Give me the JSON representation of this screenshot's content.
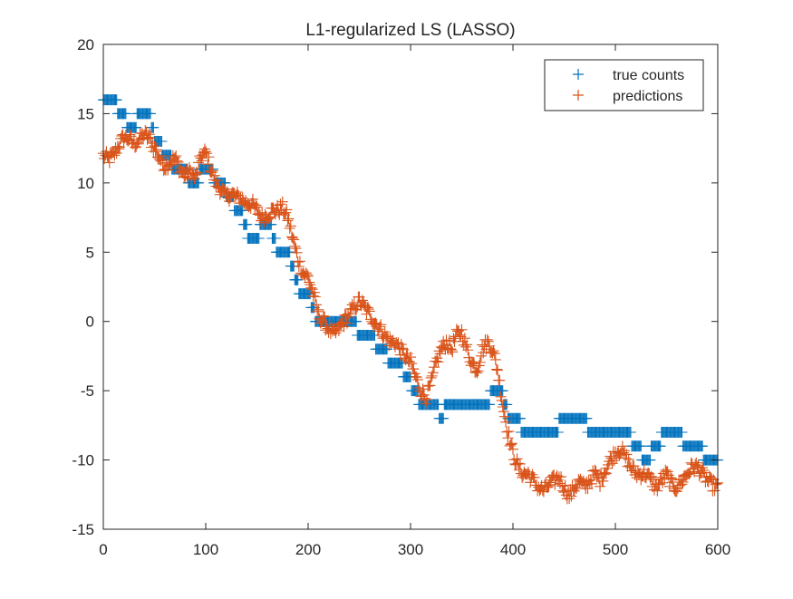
{
  "chart_data": {
    "type": "scatter",
    "title": "L1-regularized LS (LASSO)",
    "xlabel": "",
    "ylabel": "",
    "xlim": [
      0,
      600
    ],
    "ylim": [
      -15,
      20
    ],
    "xticks": [
      0,
      100,
      200,
      300,
      400,
      500,
      600
    ],
    "yticks": [
      -15,
      -10,
      -5,
      0,
      5,
      10,
      15,
      20
    ],
    "xtick_labels": [
      "0",
      "100",
      "200",
      "300",
      "400",
      "500",
      "600"
    ],
    "ytick_labels": [
      "-15",
      "-10",
      "-5",
      "0",
      "5",
      "10",
      "15",
      "20"
    ],
    "grid": false,
    "legend_position": "top-right",
    "marker": "+",
    "series": [
      {
        "name": "true counts",
        "color": "#0072BD",
        "anchors": [
          [
            0,
            16
          ],
          [
            12,
            16
          ],
          [
            15,
            15
          ],
          [
            20,
            15
          ],
          [
            25,
            14
          ],
          [
            30,
            14
          ],
          [
            35,
            15
          ],
          [
            45,
            15
          ],
          [
            47,
            14
          ],
          [
            52,
            13
          ],
          [
            55,
            13
          ],
          [
            60,
            12
          ],
          [
            65,
            12
          ],
          [
            68,
            11
          ],
          [
            75,
            11
          ],
          [
            80,
            11
          ],
          [
            85,
            10
          ],
          [
            92,
            10
          ],
          [
            95,
            11
          ],
          [
            105,
            11
          ],
          [
            110,
            10
          ],
          [
            118,
            10
          ],
          [
            120,
            9
          ],
          [
            125,
            9
          ],
          [
            130,
            8
          ],
          [
            135,
            8
          ],
          [
            138,
            7
          ],
          [
            142,
            6
          ],
          [
            150,
            6
          ],
          [
            155,
            7
          ],
          [
            162,
            7
          ],
          [
            166,
            6
          ],
          [
            170,
            5
          ],
          [
            180,
            5
          ],
          [
            185,
            4
          ],
          [
            188,
            3
          ],
          [
            192,
            2
          ],
          [
            200,
            2
          ],
          [
            205,
            1
          ],
          [
            208,
            0
          ],
          [
            220,
            0
          ],
          [
            232,
            0
          ],
          [
            238,
            0
          ],
          [
            245,
            0
          ],
          [
            250,
            -1
          ],
          [
            262,
            -1
          ],
          [
            268,
            -2
          ],
          [
            275,
            -2
          ],
          [
            280,
            -3
          ],
          [
            290,
            -3
          ],
          [
            295,
            -4
          ],
          [
            305,
            -5
          ],
          [
            310,
            -6
          ],
          [
            325,
            -6
          ],
          [
            330,
            -7
          ],
          [
            335,
            -6
          ],
          [
            345,
            -6
          ],
          [
            360,
            -6
          ],
          [
            375,
            -6
          ],
          [
            380,
            -5
          ],
          [
            388,
            -5
          ],
          [
            392,
            -6
          ],
          [
            396,
            -7
          ],
          [
            405,
            -7
          ],
          [
            410,
            -8
          ],
          [
            425,
            -8
          ],
          [
            440,
            -8
          ],
          [
            450,
            -7
          ],
          [
            470,
            -7
          ],
          [
            475,
            -8
          ],
          [
            485,
            -8
          ],
          [
            500,
            -8
          ],
          [
            510,
            -8
          ],
          [
            520,
            -9
          ],
          [
            530,
            -10
          ],
          [
            540,
            -9
          ],
          [
            550,
            -8
          ],
          [
            560,
            -8
          ],
          [
            570,
            -9
          ],
          [
            580,
            -9
          ],
          [
            590,
            -10
          ],
          [
            600,
            -10
          ]
        ]
      },
      {
        "name": "predictions",
        "color": "#D95319",
        "anchors": [
          [
            0,
            12
          ],
          [
            5,
            11.7
          ],
          [
            10,
            12
          ],
          [
            15,
            12.7
          ],
          [
            20,
            13.3
          ],
          [
            25,
            13.2
          ],
          [
            30,
            12.8
          ],
          [
            35,
            13.1
          ],
          [
            40,
            13.5
          ],
          [
            45,
            13.2
          ],
          [
            50,
            12.5
          ],
          [
            55,
            11.8
          ],
          [
            60,
            11.2
          ],
          [
            65,
            11.5
          ],
          [
            70,
            11.8
          ],
          [
            75,
            11
          ],
          [
            80,
            10.5
          ],
          [
            85,
            10.8
          ],
          [
            90,
            10.3
          ],
          [
            95,
            11.8
          ],
          [
            100,
            12.2
          ],
          [
            105,
            11
          ],
          [
            110,
            10
          ],
          [
            115,
            9.5
          ],
          [
            120,
            9
          ],
          [
            125,
            9.2
          ],
          [
            130,
            9
          ],
          [
            135,
            8.8
          ],
          [
            140,
            8.5
          ],
          [
            145,
            8.5
          ],
          [
            150,
            8
          ],
          [
            155,
            7.5
          ],
          [
            160,
            7.7
          ],
          [
            165,
            8
          ],
          [
            170,
            8
          ],
          [
            175,
            8.2
          ],
          [
            180,
            7.5
          ],
          [
            185,
            6
          ],
          [
            190,
            4.5
          ],
          [
            195,
            3.5
          ],
          [
            200,
            3.2
          ],
          [
            205,
            2
          ],
          [
            210,
            0.5
          ],
          [
            215,
            0
          ],
          [
            220,
            -0.5
          ],
          [
            225,
            -1
          ],
          [
            230,
            -0.5
          ],
          [
            235,
            0
          ],
          [
            240,
            0.5
          ],
          [
            245,
            1
          ],
          [
            250,
            1.5
          ],
          [
            255,
            1
          ],
          [
            260,
            0.5
          ],
          [
            265,
            0
          ],
          [
            270,
            -0.5
          ],
          [
            275,
            -1
          ],
          [
            280,
            -1.5
          ],
          [
            285,
            -1.5
          ],
          [
            290,
            -2
          ],
          [
            295,
            -2.5
          ],
          [
            300,
            -3
          ],
          [
            305,
            -4
          ],
          [
            310,
            -5
          ],
          [
            315,
            -5.5
          ],
          [
            320,
            -4.5
          ],
          [
            325,
            -3
          ],
          [
            330,
            -2
          ],
          [
            335,
            -1.5
          ],
          [
            340,
            -2
          ],
          [
            345,
            -1
          ],
          [
            350,
            -0.8
          ],
          [
            355,
            -2
          ],
          [
            360,
            -3
          ],
          [
            365,
            -3.5
          ],
          [
            370,
            -2
          ],
          [
            375,
            -1.5
          ],
          [
            380,
            -2
          ],
          [
            385,
            -3.5
          ],
          [
            390,
            -6
          ],
          [
            395,
            -8
          ],
          [
            400,
            -9.5
          ],
          [
            405,
            -10.5
          ],
          [
            410,
            -11
          ],
          [
            415,
            -11
          ],
          [
            420,
            -11.5
          ],
          [
            425,
            -12
          ],
          [
            430,
            -12.2
          ],
          [
            435,
            -11.8
          ],
          [
            440,
            -11.5
          ],
          [
            445,
            -11.2
          ],
          [
            450,
            -12
          ],
          [
            455,
            -12.6
          ],
          [
            460,
            -12
          ],
          [
            465,
            -11.5
          ],
          [
            470,
            -12
          ],
          [
            475,
            -11.5
          ],
          [
            480,
            -11
          ],
          [
            485,
            -11.5
          ],
          [
            490,
            -10.8
          ],
          [
            495,
            -10
          ],
          [
            500,
            -9.5
          ],
          [
            505,
            -9.2
          ],
          [
            510,
            -9.8
          ],
          [
            515,
            -10.5
          ],
          [
            520,
            -11
          ],
          [
            525,
            -11
          ],
          [
            530,
            -11
          ],
          [
            535,
            -11.5
          ],
          [
            540,
            -12
          ],
          [
            545,
            -11.5
          ],
          [
            550,
            -11
          ],
          [
            555,
            -11.8
          ],
          [
            560,
            -12
          ],
          [
            565,
            -11.5
          ],
          [
            570,
            -11
          ],
          [
            575,
            -10.5
          ],
          [
            580,
            -10.5
          ],
          [
            585,
            -11
          ],
          [
            590,
            -11.5
          ],
          [
            595,
            -11.8
          ],
          [
            600,
            -12
          ]
        ]
      }
    ]
  }
}
